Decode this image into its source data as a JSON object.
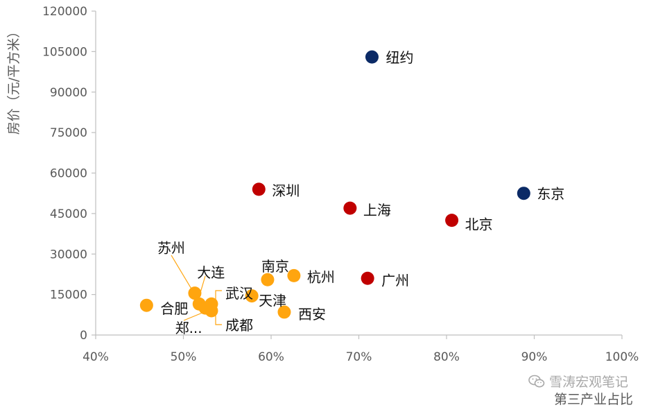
{
  "chart_data": {
    "type": "scatter",
    "title": "",
    "xlabel": "第三产业占比",
    "ylabel": "房价（元/平方米）",
    "xlim": [
      40,
      100
    ],
    "ylim": [
      0,
      120000
    ],
    "x_ticks": [
      "40%",
      "50%",
      "60%",
      "70%",
      "80%",
      "90%",
      "100%"
    ],
    "y_ticks": [
      "0",
      "15000",
      "30000",
      "45000",
      "60000",
      "75000",
      "90000",
      "105000",
      "120000"
    ],
    "grid": false,
    "legend": "none",
    "colors": {
      "tier1": "#c00000",
      "intl": "#0b2a66",
      "other": "#ffa50f",
      "leader": "#ffa50f"
    },
    "points": [
      {
        "label": "纽约",
        "x": 71.5,
        "y": 103000,
        "group": "intl"
      },
      {
        "label": "东京",
        "x": 88.8,
        "y": 52500,
        "group": "intl"
      },
      {
        "label": "深圳",
        "x": 58.6,
        "y": 54000,
        "group": "tier1"
      },
      {
        "label": "上海",
        "x": 69.0,
        "y": 47000,
        "group": "tier1"
      },
      {
        "label": "北京",
        "x": 80.6,
        "y": 42500,
        "group": "tier1"
      },
      {
        "label": "广州",
        "x": 71.0,
        "y": 21000,
        "group": "tier1"
      },
      {
        "label": "杭州",
        "x": 62.6,
        "y": 22000,
        "group": "other"
      },
      {
        "label": "南京",
        "x": 59.6,
        "y": 20500,
        "group": "other"
      },
      {
        "label": "天津",
        "x": 57.8,
        "y": 14500,
        "group": "other"
      },
      {
        "label": "西安",
        "x": 61.5,
        "y": 8500,
        "group": "other"
      },
      {
        "label": "苏州",
        "x": 51.3,
        "y": 15500,
        "group": "other"
      },
      {
        "label": "大连",
        "x": 51.8,
        "y": 11500,
        "group": "other"
      },
      {
        "label": "武汉",
        "x": 53.2,
        "y": 11500,
        "group": "other"
      },
      {
        "label": "成都",
        "x": 53.2,
        "y": 9000,
        "group": "other"
      },
      {
        "label": "郑...",
        "x": 52.5,
        "y": 10000,
        "group": "other"
      },
      {
        "label": "合肥",
        "x": 45.8,
        "y": 11000,
        "group": "other"
      }
    ]
  },
  "watermark": {
    "text": "雪涛宏观笔记",
    "icon": "wechat-icon"
  }
}
